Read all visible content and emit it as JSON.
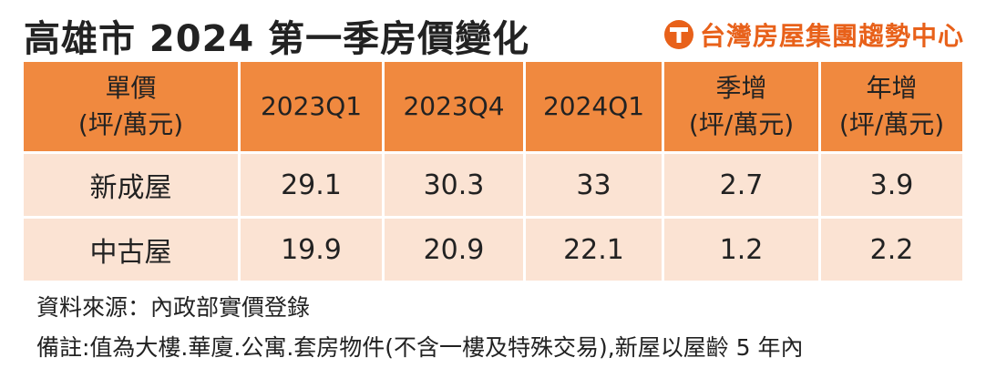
{
  "title": "高雄市 2024 第一季房價變化",
  "brand": {
    "name": "台灣房屋集團趨勢中心",
    "logo_icon": "taiwan-house-t-logo-icon",
    "color": "#e8611a"
  },
  "table": {
    "headers": {
      "unit_line1": "單價",
      "unit_line2": "(坪/萬元)",
      "q2023q1": "2023Q1",
      "q2023q4": "2023Q4",
      "q2024q1": "2024Q1",
      "qoq_line1": "季增",
      "qoq_line2": "(坪/萬元)",
      "yoy_line1": "年增",
      "yoy_line2": "(坪/萬元)"
    },
    "rows": [
      {
        "label": "新成屋",
        "v2023q1": "29.1",
        "v2023q4": "30.3",
        "v2024q1": "33",
        "qoq": "2.7",
        "yoy": "3.9"
      },
      {
        "label": "中古屋",
        "v2023q1": "19.9",
        "v2023q4": "20.9",
        "v2024q1": "22.1",
        "qoq": "1.2",
        "yoy": "2.2"
      }
    ]
  },
  "notes": {
    "source": "資料來源：內政部實價登錄",
    "remark": "備註:值為大樓.華廈.公寓.套房物件(不含一樓及特殊交易),新屋以屋齡 5 年內"
  },
  "colors": {
    "header_bg": "#f0893f",
    "row_bg": "#fbe3d3"
  }
}
